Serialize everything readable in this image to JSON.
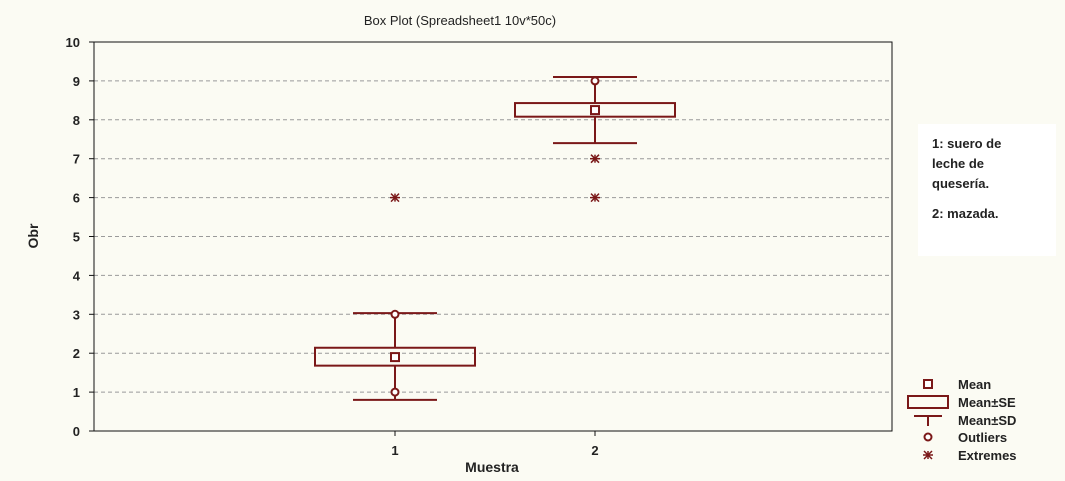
{
  "chart_data": {
    "type": "boxplot",
    "title": "Box Plot (Spreadsheet1 10v*50c)",
    "xlabel": "Muestra",
    "ylabel": "Obr",
    "ylim": [
      0,
      10
    ],
    "yticks": [
      0,
      1,
      2,
      3,
      4,
      5,
      6,
      7,
      8,
      9,
      10
    ],
    "categories": [
      "1",
      "2"
    ],
    "grid": "horizontal dashed",
    "series": [
      {
        "category": "1",
        "mean": 1.9,
        "se_low": 1.68,
        "se_high": 2.14,
        "sd_low": 0.8,
        "sd_high": 3.03,
        "outliers": [
          1.0,
          3.0
        ],
        "extremes": [
          6.0
        ]
      },
      {
        "category": "2",
        "mean": 8.25,
        "se_low": 8.08,
        "se_high": 8.43,
        "sd_low": 7.4,
        "sd_high": 9.1,
        "outliers": [
          9.0
        ],
        "extremes": [
          7.0,
          6.0
        ]
      }
    ],
    "legend": {
      "placement": "bottom-right",
      "items": [
        {
          "symbol": "mean",
          "label": "Mean"
        },
        {
          "symbol": "box",
          "label": "Mean±SE"
        },
        {
          "symbol": "whisker",
          "label": "Mean±SD"
        },
        {
          "symbol": "outlier",
          "label": "Outliers"
        },
        {
          "symbol": "extreme",
          "label": "Extremes"
        }
      ]
    },
    "annotation": {
      "lines": [
        "1: suero de\nleche de\nquesería.",
        "2: mazada."
      ]
    },
    "colors": {
      "plot": "#7a1818",
      "grid": "#9a9a9a",
      "axis": "#111111"
    }
  }
}
